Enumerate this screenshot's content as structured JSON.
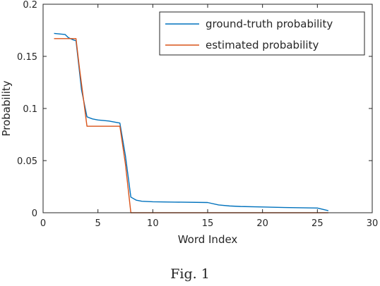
{
  "caption": "Fig. 1",
  "chart_data": {
    "type": "line",
    "xlabel": "Word Index",
    "ylabel": "Probability",
    "xlim": [
      0,
      30
    ],
    "ylim": [
      0,
      0.2
    ],
    "xticks": [
      0,
      5,
      10,
      15,
      20,
      25,
      30
    ],
    "yticks": [
      0,
      0.05,
      0.1,
      0.15,
      0.2
    ],
    "ytick_labels": [
      "0",
      "0.05",
      "0.1",
      "0.15",
      "0.2"
    ],
    "grid": false,
    "legend": "top-right",
    "series": [
      {
        "name": "ground-truth probability",
        "color": "#0072BD",
        "points": [
          [
            1,
            0.172
          ],
          [
            2,
            0.171
          ],
          [
            2.3,
            0.168
          ],
          [
            2.7,
            0.166
          ],
          [
            3,
            0.165
          ],
          [
            3.3,
            0.137
          ],
          [
            3.5,
            0.118
          ],
          [
            4,
            0.092
          ],
          [
            4.5,
            0.09
          ],
          [
            5,
            0.089
          ],
          [
            6,
            0.088
          ],
          [
            7,
            0.086
          ],
          [
            7.5,
            0.055
          ],
          [
            8,
            0.015
          ],
          [
            8.5,
            0.012
          ],
          [
            9,
            0.011
          ],
          [
            10,
            0.0105
          ],
          [
            12,
            0.0102
          ],
          [
            15,
            0.0098
          ],
          [
            16,
            0.0075
          ],
          [
            17,
            0.0065
          ],
          [
            18,
            0.006
          ],
          [
            20,
            0.0055
          ],
          [
            22,
            0.005
          ],
          [
            25,
            0.0045
          ],
          [
            26,
            0.002
          ]
        ]
      },
      {
        "name": "estimated probability",
        "color": "#D95319",
        "points": [
          [
            1,
            0.167
          ],
          [
            3,
            0.167
          ],
          [
            3.3,
            0.14
          ],
          [
            4,
            0.083
          ],
          [
            7,
            0.083
          ],
          [
            7.5,
            0.047
          ],
          [
            8,
            0
          ],
          [
            26,
            0
          ]
        ]
      }
    ]
  }
}
